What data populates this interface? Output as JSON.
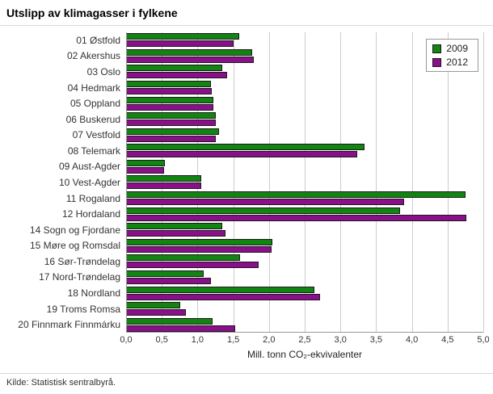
{
  "page": {
    "title": "Utslipp av klimagasser i fylkene",
    "source": "Kilde: Statistisk sentralbyrå."
  },
  "chart_data": {
    "type": "bar",
    "orientation": "horizontal",
    "title": "Utslipp av klimagasser i fylkene",
    "xlabel": "Mill. tonn CO₂-ekvivalenter",
    "ylabel": "",
    "xlim": [
      0,
      5
    ],
    "xticks": [
      "0,0",
      "0,5",
      "1,0",
      "1,5",
      "2,0",
      "2,5",
      "3,0",
      "3,5",
      "4,0",
      "4,5",
      "5,0"
    ],
    "grid": true,
    "legend_position": "top-right",
    "categories": [
      "01 Østfold",
      "02 Akershus",
      "03 Oslo",
      "04 Hedmark",
      "05 Oppland",
      "06 Buskerud",
      "07 Vestfold",
      "08 Telemark",
      "09 Aust-Agder",
      "10 Vest-Agder",
      "11 Rogaland",
      "12 Hordaland",
      "14 Sogn og Fjordane",
      "15 Møre og Romsdal",
      "16 Sør-Trøndelag",
      "17 Nord-Trøndelag",
      "18 Nordland",
      "19 Troms Romsa",
      "20 Finnmark Finnmárku"
    ],
    "series": [
      {
        "name": "2009",
        "color": "#128412",
        "values": [
          1.58,
          1.76,
          1.35,
          1.19,
          1.22,
          1.25,
          1.3,
          3.34,
          0.54,
          1.05,
          4.75,
          3.84,
          1.35,
          2.05,
          1.6,
          1.09,
          2.64,
          0.76,
          1.21
        ]
      },
      {
        "name": "2012",
        "color": "#8b0e8b",
        "values": [
          1.5,
          1.79,
          1.41,
          1.2,
          1.22,
          1.25,
          1.26,
          3.24,
          0.53,
          1.05,
          3.89,
          4.76,
          1.39,
          2.04,
          1.85,
          1.19,
          2.72,
          0.84,
          1.53
        ]
      }
    ]
  }
}
